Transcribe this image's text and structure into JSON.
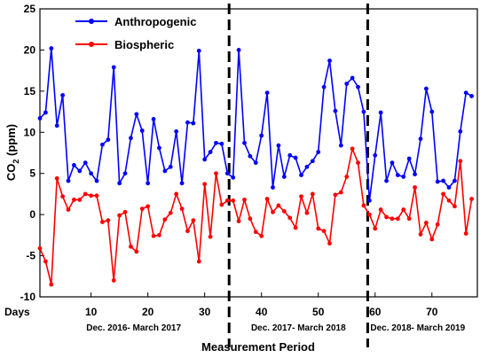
{
  "chart_data": {
    "type": "line",
    "ylabel_main": "CO",
    "ylabel_sub": "2",
    "ylabel_unit": " (ppm)",
    "x_caption": "Days",
    "xlabel": "Measurement Period",
    "xlim": [
      1,
      78
    ],
    "ylim": [
      -10,
      25
    ],
    "x_ticks": [
      10,
      20,
      30,
      40,
      50,
      60,
      70
    ],
    "y_ticks": [
      -10,
      -5,
      0,
      5,
      10,
      15,
      20,
      25
    ],
    "period_dividers": [
      34.3,
      58.7
    ],
    "periods": [
      {
        "label": "Dec. 2016- March 2017",
        "center": 17.5
      },
      {
        "label": "Dec. 2017- March 2018",
        "center": 46.5
      },
      {
        "label": "Dec. 2018- March 2019",
        "center": 67.5
      }
    ],
    "legend_position": "top-left",
    "series": [
      {
        "name": "Anthropogenic",
        "color": "#0000ff",
        "x": [
          1,
          2,
          3,
          4,
          5,
          6,
          7,
          8,
          9,
          10,
          11,
          12,
          13,
          14,
          15,
          16,
          17,
          18,
          19,
          20,
          21,
          22,
          23,
          24,
          25,
          26,
          27,
          28,
          29,
          30,
          31,
          32,
          33,
          34,
          35,
          36,
          37,
          38,
          39,
          40,
          41,
          42,
          43,
          44,
          45,
          46,
          47,
          48,
          49,
          50,
          51,
          52,
          53,
          54,
          55,
          56,
          57,
          58,
          59,
          60,
          61,
          62,
          63,
          64,
          65,
          66,
          67,
          68,
          69,
          70,
          71,
          72,
          73,
          74,
          75,
          76,
          77
        ],
        "values": [
          11.7,
          12.4,
          20.2,
          10.8,
          14.5,
          4.1,
          6.0,
          5.3,
          6.3,
          5.0,
          4.1,
          8.5,
          9.1,
          17.9,
          3.8,
          5.0,
          9.3,
          12.2,
          10.2,
          3.8,
          11.6,
          8.1,
          5.3,
          5.8,
          10.1,
          3.8,
          11.2,
          11.1,
          19.9,
          6.7,
          7.6,
          8.7,
          8.6,
          5.0,
          4.5,
          20.0,
          8.7,
          7.1,
          6.3,
          9.6,
          14.8,
          3.3,
          8.4,
          4.6,
          7.2,
          6.9,
          4.8,
          5.8,
          6.5,
          7.6,
          15.5,
          18.7,
          12.6,
          8.4,
          15.9,
          16.6,
          15.5,
          12.5,
          1.7,
          7.2,
          12.4,
          4.1,
          6.3,
          4.8,
          4.6,
          6.8,
          4.9,
          9.2,
          15.3,
          12.5,
          4.0,
          4.1,
          3.3,
          4.1,
          10.1,
          14.8,
          14.4
        ]
      },
      {
        "name": "Biospheric",
        "color": "#ff0000",
        "x": [
          1,
          2,
          3,
          4,
          5,
          6,
          7,
          8,
          9,
          10,
          11,
          12,
          13,
          14,
          15,
          16,
          17,
          18,
          19,
          20,
          21,
          22,
          23,
          24,
          25,
          26,
          27,
          28,
          29,
          30,
          31,
          32,
          33,
          34,
          35,
          36,
          37,
          38,
          39,
          40,
          41,
          42,
          43,
          44,
          45,
          46,
          47,
          48,
          49,
          50,
          51,
          52,
          53,
          54,
          55,
          56,
          57,
          58,
          59,
          60,
          61,
          62,
          63,
          64,
          65,
          66,
          67,
          68,
          69,
          70,
          71,
          72,
          73,
          74,
          75,
          76,
          77
        ],
        "values": [
          -4.1,
          -5.7,
          -8.5,
          4.4,
          2.2,
          0.6,
          1.8,
          1.8,
          2.5,
          2.3,
          2.3,
          -0.9,
          -0.7,
          -8.0,
          -0.1,
          0.3,
          -3.9,
          -4.5,
          0.7,
          1.0,
          -2.6,
          -2.5,
          -0.6,
          0.2,
          2.5,
          0.7,
          -2.0,
          -0.7,
          -5.7,
          3.7,
          -2.7,
          5.0,
          1.2,
          1.7,
          1.7,
          -0.8,
          1.8,
          -0.5,
          -2.1,
          -2.6,
          1.9,
          0.3,
          1.1,
          0.4,
          -0.4,
          -1.6,
          2.2,
          0.2,
          2.5,
          -1.7,
          -2.0,
          -3.5,
          2.4,
          2.7,
          4.6,
          8.0,
          6.3,
          1.1,
          0.0,
          -1.7,
          0.6,
          -0.3,
          -0.5,
          -0.5,
          0.6,
          -0.5,
          3.3,
          -2.4,
          -1.0,
          -3.0,
          -1.2,
          2.5,
          1.7,
          1.0,
          6.5,
          -2.3,
          1.9
        ]
      }
    ]
  }
}
